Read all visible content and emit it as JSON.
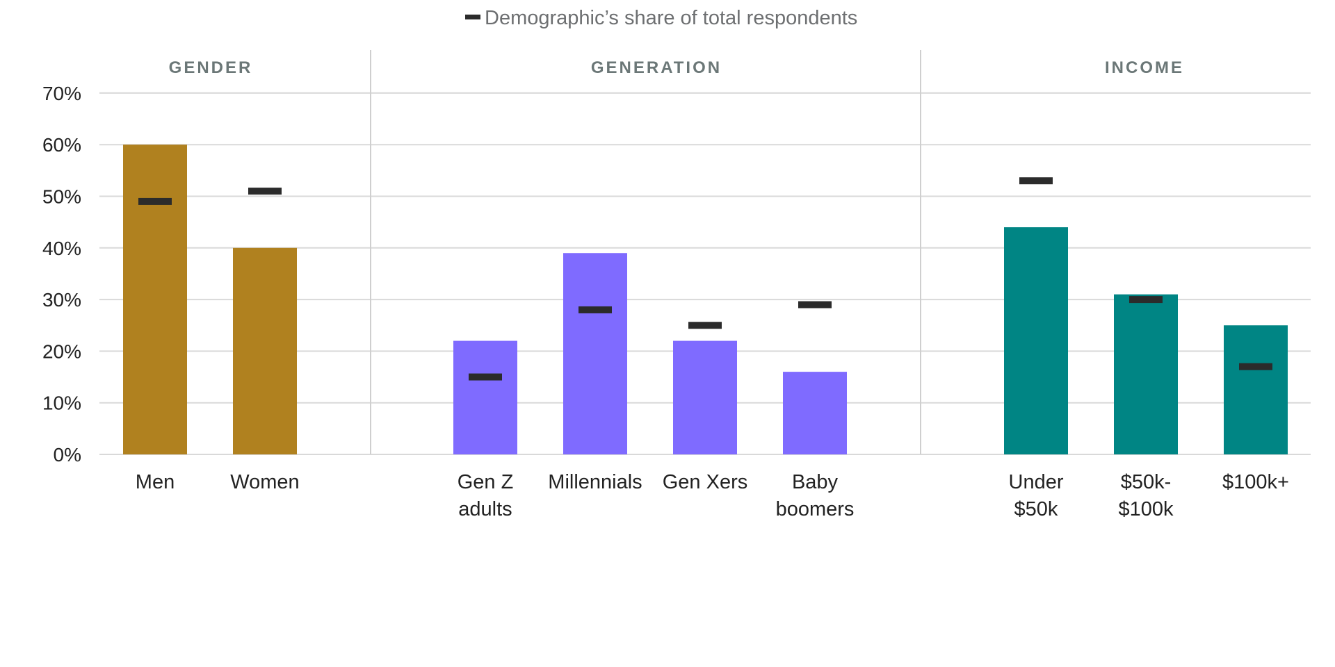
{
  "chart_data": {
    "type": "bar",
    "legend": {
      "label": "Demographic’s share of total respondents",
      "marker_color": "#2b2b2b",
      "position": "top-center"
    },
    "y_axis": {
      "min": 0,
      "max": 70,
      "ticks": [
        0,
        10,
        20,
        30,
        40,
        50,
        60,
        70
      ],
      "tick_labels": [
        "0%",
        "10%",
        "20%",
        "30%",
        "40%",
        "50%",
        "60%",
        "70%"
      ]
    },
    "grid": true,
    "groups": [
      {
        "name": "GENDER",
        "color": "#b0811f",
        "categories": [
          {
            "label_lines": [
              "Men"
            ],
            "value": 60,
            "share": 49
          },
          {
            "label_lines": [
              "Women"
            ],
            "value": 40,
            "share": 51
          }
        ]
      },
      {
        "name": "GENERATION",
        "color": "#7f6bff",
        "categories": [
          {
            "label_lines": [
              "Gen Z",
              "adults"
            ],
            "value": 22,
            "share": 15
          },
          {
            "label_lines": [
              "Millennials"
            ],
            "value": 39,
            "share": 28
          },
          {
            "label_lines": [
              "Gen Xers"
            ],
            "value": 22,
            "share": 25
          },
          {
            "label_lines": [
              "Baby",
              "boomers"
            ],
            "value": 16,
            "share": 29
          }
        ]
      },
      {
        "name": "INCOME",
        "color": "#008584",
        "categories": [
          {
            "label_lines": [
              "Under",
              "$50k"
            ],
            "value": 44,
            "share": 53
          },
          {
            "label_lines": [
              "$50k-",
              "$100k"
            ],
            "value": 31,
            "share": 30
          },
          {
            "label_lines": [
              "$100k+"
            ],
            "value": 25,
            "share": 17
          }
        ]
      }
    ]
  }
}
